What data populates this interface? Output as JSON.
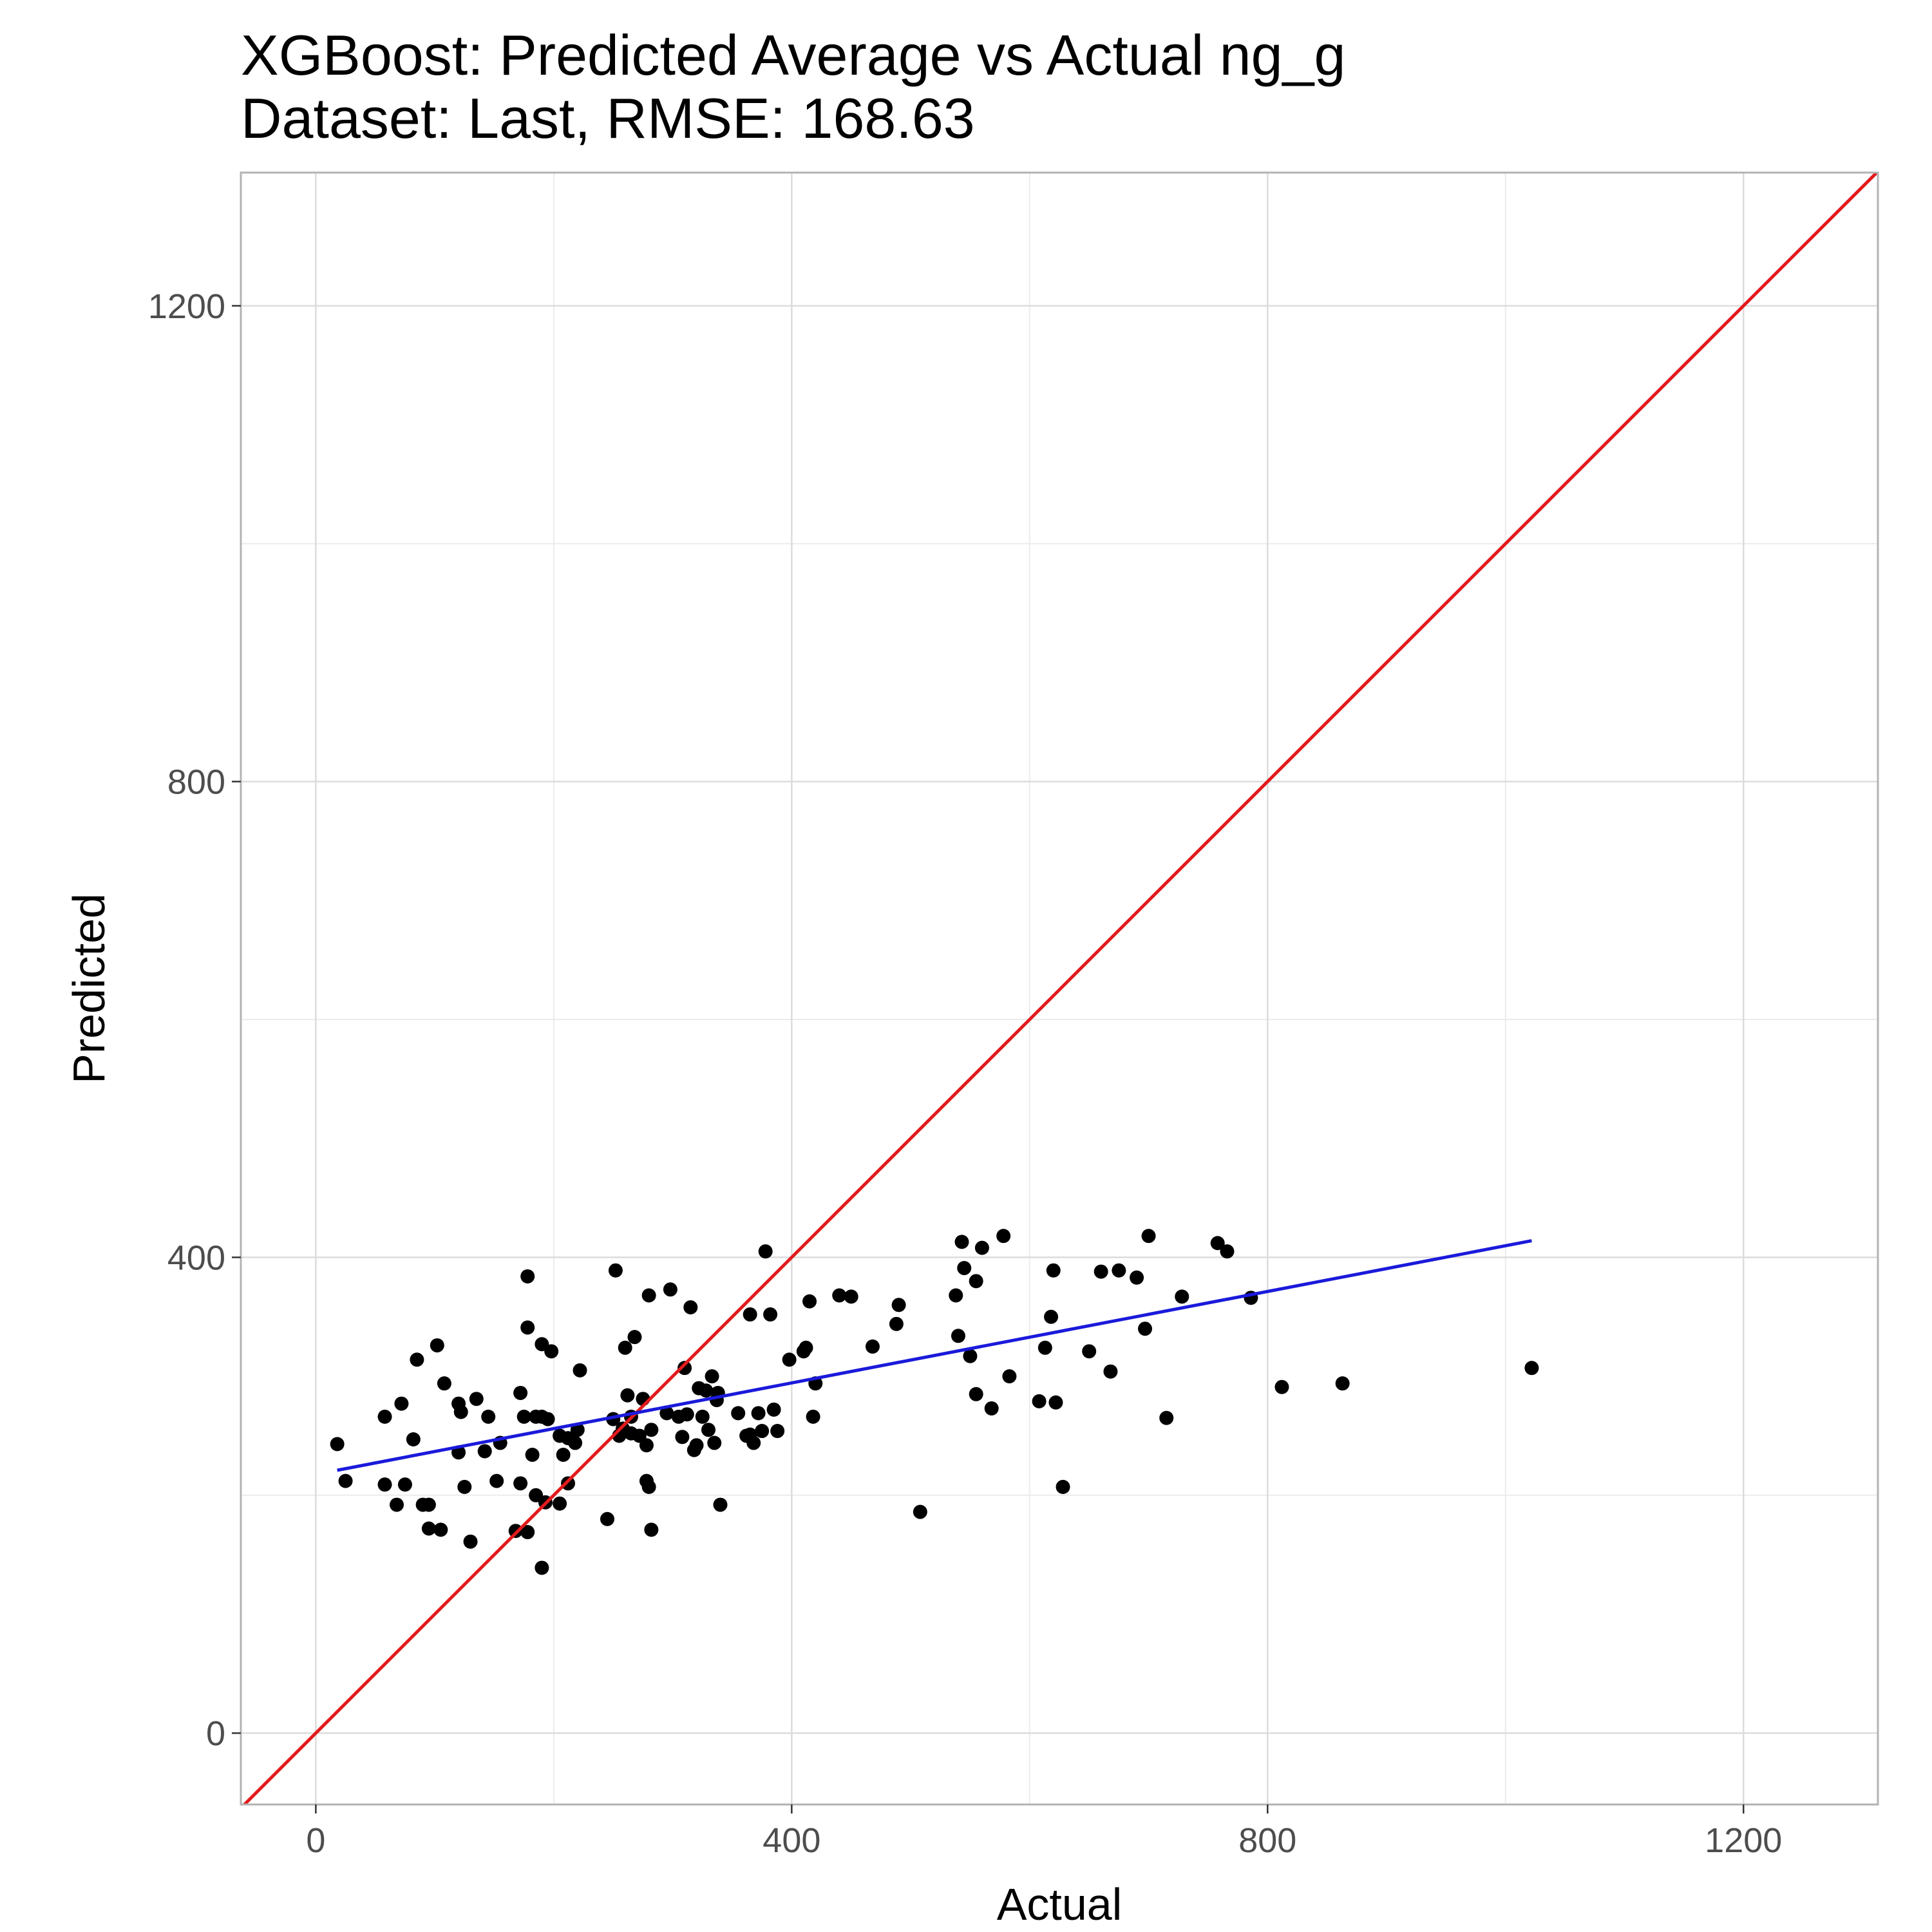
{
  "chart_data": {
    "type": "scatter",
    "title": "XGBoost: Predicted Average vs Actual ng_g",
    "subtitle": "Dataset: Last, RMSE: 168.63",
    "xlabel": "Actual",
    "ylabel": "Predicted",
    "xlim": [
      -63,
      1313
    ],
    "ylim": [
      -60,
      1312
    ],
    "x_ticks": [
      0,
      400,
      800,
      1200
    ],
    "y_ticks": [
      0,
      400,
      800,
      1200
    ],
    "x_tick_labels": [
      "0",
      "400",
      "800",
      "1200"
    ],
    "y_tick_labels": [
      "0",
      "400",
      "800",
      "1200"
    ],
    "grid": true,
    "legend": "none",
    "colors": {
      "points": "#000000",
      "identity_line": "#e31a1c",
      "fit_line": "#1a1adb",
      "grid_major": "#dcdcdc",
      "grid_minor": "#ececec",
      "panel_border": "#b3b3b3"
    },
    "identity_line": {
      "slope": 1,
      "intercept": 0
    },
    "fit_line": {
      "x_start": 18,
      "x_end": 1022,
      "y_start": 221,
      "y_end": 414
    },
    "points": [
      [
        18,
        243
      ],
      [
        25,
        212
      ],
      [
        58,
        209
      ],
      [
        58,
        266
      ],
      [
        68,
        192
      ],
      [
        72,
        277
      ],
      [
        75,
        209
      ],
      [
        82,
        247
      ],
      [
        85,
        314
      ],
      [
        90,
        192
      ],
      [
        95,
        172
      ],
      [
        95,
        192
      ],
      [
        102,
        326
      ],
      [
        105,
        171
      ],
      [
        108,
        294
      ],
      [
        120,
        236
      ],
      [
        120,
        277
      ],
      [
        122,
        270
      ],
      [
        125,
        207
      ],
      [
        130,
        161
      ],
      [
        135,
        281
      ],
      [
        142,
        237
      ],
      [
        145,
        266
      ],
      [
        152,
        212
      ],
      [
        155,
        244
      ],
      [
        168,
        170
      ],
      [
        172,
        210
      ],
      [
        172,
        286
      ],
      [
        175,
        266
      ],
      [
        178,
        169
      ],
      [
        178,
        384
      ],
      [
        178,
        341
      ],
      [
        182,
        234
      ],
      [
        185,
        200
      ],
      [
        185,
        266
      ],
      [
        190,
        266
      ],
      [
        190,
        139
      ],
      [
        190,
        327
      ],
      [
        193,
        194
      ],
      [
        195,
        264
      ],
      [
        198,
        321
      ],
      [
        205,
        250
      ],
      [
        205,
        193
      ],
      [
        208,
        234
      ],
      [
        212,
        248
      ],
      [
        212,
        210
      ],
      [
        218,
        244
      ],
      [
        220,
        255
      ],
      [
        222,
        305
      ],
      [
        245,
        180
      ],
      [
        250,
        264
      ],
      [
        252,
        389
      ],
      [
        255,
        250
      ],
      [
        258,
        256
      ],
      [
        260,
        324
      ],
      [
        262,
        284
      ],
      [
        265,
        266
      ],
      [
        265,
        252
      ],
      [
        268,
        333
      ],
      [
        272,
        250
      ],
      [
        275,
        281
      ],
      [
        278,
        212
      ],
      [
        278,
        242
      ],
      [
        280,
        207
      ],
      [
        280,
        368
      ],
      [
        282,
        255
      ],
      [
        282,
        171
      ],
      [
        295,
        269
      ],
      [
        298,
        373
      ],
      [
        305,
        266
      ],
      [
        308,
        249
      ],
      [
        310,
        307
      ],
      [
        312,
        268
      ],
      [
        315,
        358
      ],
      [
        318,
        238
      ],
      [
        320,
        242
      ],
      [
        322,
        290
      ],
      [
        325,
        266
      ],
      [
        328,
        288
      ],
      [
        330,
        255
      ],
      [
        333,
        300
      ],
      [
        335,
        244
      ],
      [
        337,
        280
      ],
      [
        338,
        286
      ],
      [
        340,
        192
      ],
      [
        355,
        269
      ],
      [
        362,
        250
      ],
      [
        365,
        251
      ],
      [
        365,
        352
      ],
      [
        368,
        244
      ],
      [
        372,
        269
      ],
      [
        375,
        254
      ],
      [
        378,
        405
      ],
      [
        382,
        352
      ],
      [
        388,
        254
      ],
      [
        385,
        272
      ],
      [
        398,
        314
      ],
      [
        410,
        321
      ],
      [
        412,
        324
      ],
      [
        415,
        363
      ],
      [
        418,
        266
      ],
      [
        420,
        294
      ],
      [
        440,
        368
      ],
      [
        450,
        367
      ],
      [
        468,
        325
      ],
      [
        488,
        344
      ],
      [
        490,
        360
      ],
      [
        508,
        186
      ],
      [
        538,
        368
      ],
      [
        543,
        413
      ],
      [
        540,
        334
      ],
      [
        545,
        391
      ],
      [
        550,
        317
      ],
      [
        555,
        380
      ],
      [
        555,
        285
      ],
      [
        560,
        408
      ],
      [
        568,
        273
      ],
      [
        578,
        418
      ],
      [
        583,
        300
      ],
      [
        608,
        279
      ],
      [
        613,
        324
      ],
      [
        618,
        350
      ],
      [
        620,
        389
      ],
      [
        622,
        278
      ],
      [
        628,
        207
      ],
      [
        650,
        321
      ],
      [
        660,
        388
      ],
      [
        668,
        304
      ],
      [
        675,
        389
      ],
      [
        690,
        383
      ],
      [
        697,
        340
      ],
      [
        700,
        418
      ],
      [
        715,
        265
      ],
      [
        728,
        367
      ],
      [
        758,
        412
      ],
      [
        766,
        405
      ],
      [
        786,
        366
      ],
      [
        812,
        291
      ],
      [
        863,
        294
      ],
      [
        1022,
        307
      ]
    ]
  }
}
